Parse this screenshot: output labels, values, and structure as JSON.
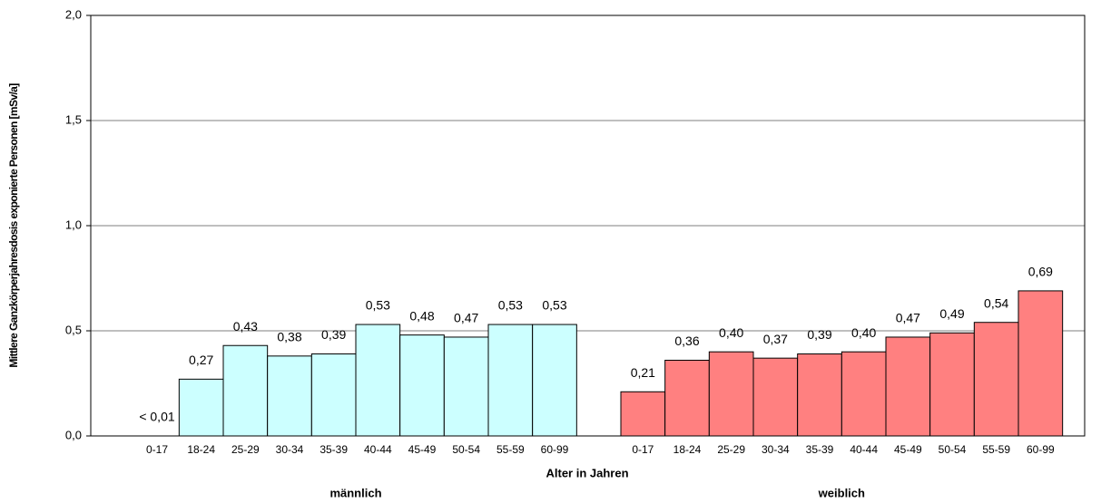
{
  "chart_data": {
    "type": "bar",
    "y_label": "Mittlere Ganzkörperjahresdosis exponierte Personen [mSv/a]",
    "x_label": "Alter in Jahren",
    "categories": [
      "0-17",
      "18-24",
      "25-29",
      "30-34",
      "35-39",
      "40-44",
      "45-49",
      "50-54",
      "55-59",
      "60-99",
      null,
      "0-17",
      "18-24",
      "25-29",
      "30-34",
      "35-39",
      "40-44",
      "45-49",
      "50-54",
      "55-59",
      "60-99"
    ],
    "series": [
      {
        "name": "männlich",
        "color": "#ccffff",
        "values": [
          0,
          0.27,
          0.43,
          0.38,
          0.39,
          0.53,
          0.48,
          0.47,
          0.53,
          0.53,
          null,
          null,
          null,
          null,
          null,
          null,
          null,
          null,
          null,
          null,
          null
        ],
        "value_labels": [
          "< 0,01",
          "0,27",
          "0,43",
          "0,38",
          "0,39",
          "0,53",
          "0,48",
          "0,47",
          "0,53",
          "0,53",
          null,
          null,
          null,
          null,
          null,
          null,
          null,
          null,
          null,
          null,
          null
        ]
      },
      {
        "name": "weiblich",
        "color": "#ff8080",
        "values": [
          null,
          null,
          null,
          null,
          null,
          null,
          null,
          null,
          null,
          null,
          null,
          0.21,
          0.36,
          0.4,
          0.37,
          0.39,
          0.4,
          0.47,
          0.49,
          0.54,
          0.69
        ],
        "value_labels": [
          null,
          null,
          null,
          null,
          null,
          null,
          null,
          null,
          null,
          null,
          null,
          "0,21",
          "0,36",
          "0,40",
          "0,37",
          "0,39",
          "0,40",
          "0,47",
          "0,49",
          "0,54",
          "0,69"
        ]
      }
    ],
    "ylim": [
      0,
      2
    ],
    "yticks": [
      {
        "value": 0,
        "label": "0,0"
      },
      {
        "value": 0.5,
        "label": "0,5"
      },
      {
        "value": 1,
        "label": "1,0"
      },
      {
        "value": 1.5,
        "label": "1,5"
      },
      {
        "value": 2,
        "label": "2,0"
      }
    ],
    "grid": true
  }
}
